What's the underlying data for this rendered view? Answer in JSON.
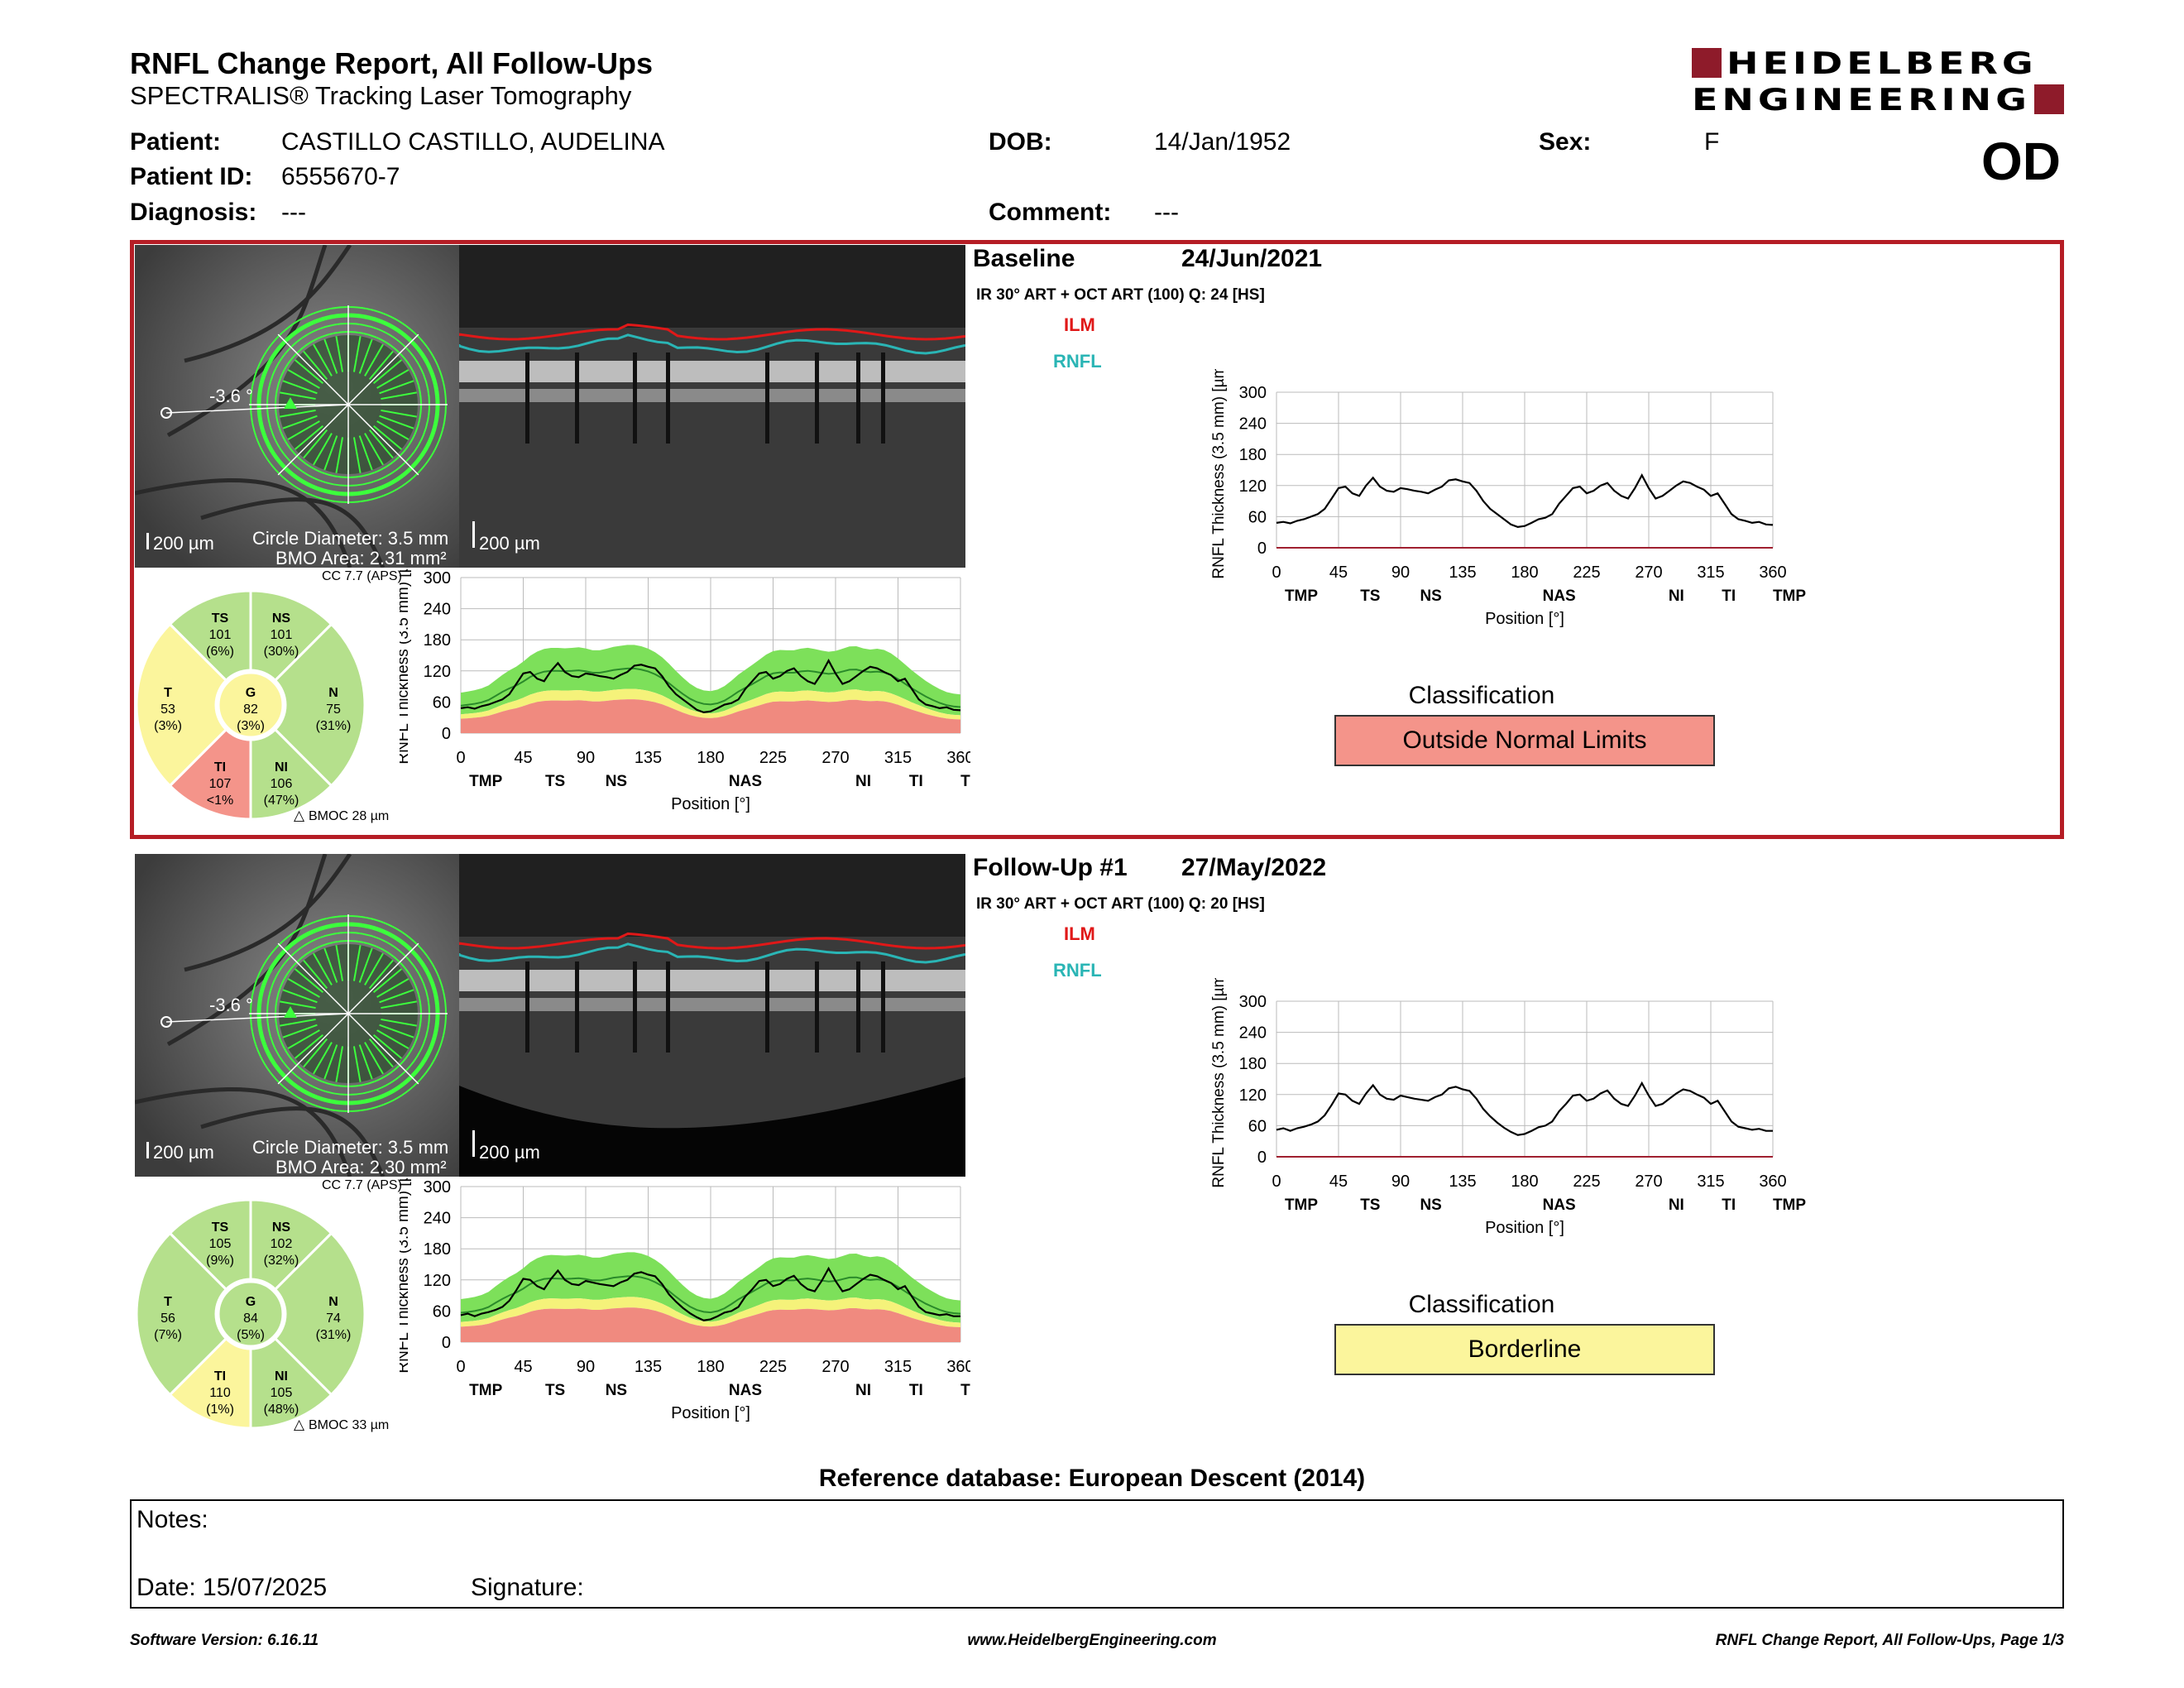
{
  "report": {
    "title": "RNFL Change Report, All Follow-Ups",
    "subtitle": "SPECTRALIS® Tracking Laser Tomography",
    "logo_line1": "HEIDELBERG",
    "logo_line2": "ENGINEERING",
    "eye": "OD"
  },
  "patient": {
    "name_label": "Patient:",
    "name": "CASTILLO CASTILLO, AUDELINA",
    "id_label": "Patient ID:",
    "id": "6555670-7",
    "diagnosis_label": "Diagnosis:",
    "diagnosis": "---",
    "dob_label": "DOB:",
    "dob": "14/Jan/1952",
    "comment_label": "Comment:",
    "comment": "---",
    "sex_label": "Sex:",
    "sex": "F"
  },
  "scans": [
    {
      "heading": "Baseline",
      "date": "24/Jun/2021",
      "acquisition": "IR 30° ART + OCT ART (100) Q: 24 [HS]",
      "angle": "-3.6 °",
      "slo_scale": "200 µm",
      "circle_diameter": "Circle Diameter: 3.5 mm",
      "bmo_area": "BMO Area: 2.31 mm²",
      "bscan_scale": "200 µm",
      "ilm": "ILM",
      "rnfl": "RNFL",
      "cc": "CC 7.7 (APS)",
      "bmoc": "BMOC 28 µm",
      "classification_title": "Classification",
      "classification": "Outside Normal Limits",
      "classification_color": "#f4948a",
      "sectors": {
        "TS": {
          "label": "TS",
          "value": "101",
          "pct": "(6%)",
          "color": "#b5e08c"
        },
        "NS": {
          "label": "NS",
          "value": "101",
          "pct": "(30%)",
          "color": "#b5e08c"
        },
        "T": {
          "label": "T",
          "value": "53",
          "pct": "(3%)",
          "color": "#fbf59c"
        },
        "G": {
          "label": "G",
          "value": "82",
          "pct": "(3%)",
          "color": "#fbf59c"
        },
        "N": {
          "label": "N",
          "value": "75",
          "pct": "(31%)",
          "color": "#b5e08c"
        },
        "TI": {
          "label": "TI",
          "value": "107",
          "pct": "<1%",
          "color": "#f4948a"
        },
        "NI": {
          "label": "NI",
          "value": "106",
          "pct": "(47%)",
          "color": "#b5e08c"
        }
      },
      "profile": [
        48,
        50,
        47,
        52,
        55,
        60,
        65,
        75,
        95,
        115,
        118,
        105,
        100,
        120,
        135,
        118,
        110,
        108,
        115,
        113,
        110,
        108,
        105,
        112,
        118,
        130,
        132,
        128,
        125,
        110,
        90,
        75,
        65,
        55,
        45,
        40,
        42,
        48,
        55,
        58,
        65,
        85,
        100,
        115,
        118,
        105,
        110,
        120,
        125,
        110,
        100,
        95,
        115,
        140,
        115,
        95,
        100,
        110,
        120,
        128,
        125,
        118,
        112,
        100,
        105,
        85,
        65,
        55,
        52,
        48,
        50,
        45,
        44
      ]
    },
    {
      "heading": "Follow-Up #1",
      "date": "27/May/2022",
      "acquisition": "IR 30° ART + OCT ART (100) Q: 20 [HS]",
      "angle": "-3.6 °",
      "slo_scale": "200 µm",
      "circle_diameter": "Circle Diameter: 3.5 mm",
      "bmo_area": "BMO Area: 2.30 mm²",
      "bscan_scale": "200 µm",
      "ilm": "ILM",
      "rnfl": "RNFL",
      "cc": "CC 7.7 (APS)",
      "bmoc": "BMOC 33 µm",
      "classification_title": "Classification",
      "classification": "Borderline",
      "classification_color": "#fbf59c",
      "sectors": {
        "TS": {
          "label": "TS",
          "value": "105",
          "pct": "(9%)",
          "color": "#b5e08c"
        },
        "NS": {
          "label": "NS",
          "value": "102",
          "pct": "(32%)",
          "color": "#b5e08c"
        },
        "T": {
          "label": "T",
          "value": "56",
          "pct": "(7%)",
          "color": "#b5e08c"
        },
        "G": {
          "label": "G",
          "value": "84",
          "pct": "(5%)",
          "color": "#b5e08c"
        },
        "N": {
          "label": "N",
          "value": "74",
          "pct": "(31%)",
          "color": "#b5e08c"
        },
        "TI": {
          "label": "TI",
          "value": "110",
          "pct": "(1%)",
          "color": "#fbf59c"
        },
        "NI": {
          "label": "NI",
          "value": "105",
          "pct": "(48%)",
          "color": "#b5e08c"
        }
      },
      "profile": [
        52,
        55,
        50,
        55,
        58,
        62,
        68,
        80,
        100,
        122,
        120,
        108,
        102,
        122,
        138,
        120,
        112,
        110,
        118,
        115,
        112,
        110,
        108,
        115,
        120,
        132,
        135,
        130,
        127,
        112,
        92,
        78,
        66,
        56,
        48,
        42,
        44,
        50,
        57,
        60,
        68,
        88,
        102,
        118,
        120,
        108,
        112,
        122,
        128,
        112,
        102,
        98,
        118,
        142,
        118,
        98,
        102,
        112,
        122,
        130,
        127,
        120,
        114,
        102,
        108,
        88,
        68,
        58,
        55,
        52,
        54,
        50,
        50
      ]
    }
  ],
  "chart_axes": {
    "ylabel": "RNFL Thickness (3.5 mm) [µm]",
    "xlabel": "Position [°]",
    "yticks": [
      "0",
      "60",
      "120",
      "180",
      "240",
      "300"
    ],
    "xticks": [
      "0",
      "45",
      "90",
      "135",
      "180",
      "225",
      "270",
      "315",
      "360"
    ],
    "sector_labels": [
      "TMP",
      "TS",
      "NS",
      "NAS",
      "NI",
      "TI",
      "TMP"
    ],
    "ylim": [
      0,
      300
    ],
    "xlim": [
      0,
      360
    ]
  },
  "reference_db": "Reference database: European Descent (2014)",
  "notes": {
    "notes_label": "Notes:",
    "date_label": "Date: 15/07/2025",
    "signature_label": "Signature:"
  },
  "footer": {
    "software": "Software Version: 6.16.11",
    "website": "www.HeidelbergEngineering.com",
    "page": "RNFL Change Report, All Follow-Ups, Page 1/3"
  }
}
